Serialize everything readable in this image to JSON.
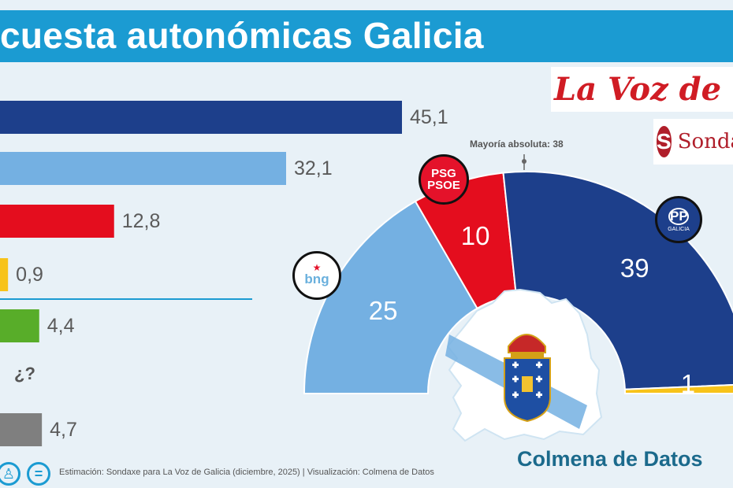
{
  "title": "cuesta autonómicas Galicia",
  "chart_data": [
    {
      "type": "bar",
      "orientation": "horizontal",
      "categories": [
        "PP",
        "BNG",
        "PSdeG-PSOE",
        "",
        "",
        "",
        ""
      ],
      "values": [
        45.1,
        32.1,
        12.8,
        0.9,
        4.4,
        null,
        4.7
      ],
      "value_labels": [
        "45,1",
        "32,1",
        "12,8",
        "0,9",
        "4,4",
        "¿?",
        "4,7"
      ],
      "colors": [
        "#1d3f8b",
        "#74b0e2",
        "#e40d1e",
        "#f7c31a",
        "#58ad29",
        null,
        "#7f7f7f"
      ]
    },
    {
      "type": "pie",
      "subtype": "parliament-hemicycle",
      "categories": [
        "BNG",
        "PSdeG-PSOE",
        "PP",
        ""
      ],
      "values": [
        25,
        10,
        39,
        1
      ],
      "value_labels": [
        "25",
        "10",
        "39",
        "1"
      ],
      "colors": [
        "#74b0e2",
        "#e40d1e",
        "#1d3f8b",
        "#f7c31a"
      ],
      "majority_label": "Mayoría absoluta: 38"
    }
  ],
  "logos": {
    "psoe_lines": [
      "PSG",
      "PSOE"
    ],
    "pp_text": "PP",
    "pp_sub": "GALICIA",
    "bng_text": "bng",
    "voz": "La Voz de Galicia",
    "sondaxe": "Sondaxe"
  },
  "brand": "Colmena de Datos",
  "footer": "Estimación: Sondaxe para La Voz de Galicia (diciembre, 2025) | Visualización: Colmena de Datos",
  "icons": [
    "person-icon",
    "equals-icon",
    "galicia-map-icon",
    "coat-of-arms-icon"
  ]
}
